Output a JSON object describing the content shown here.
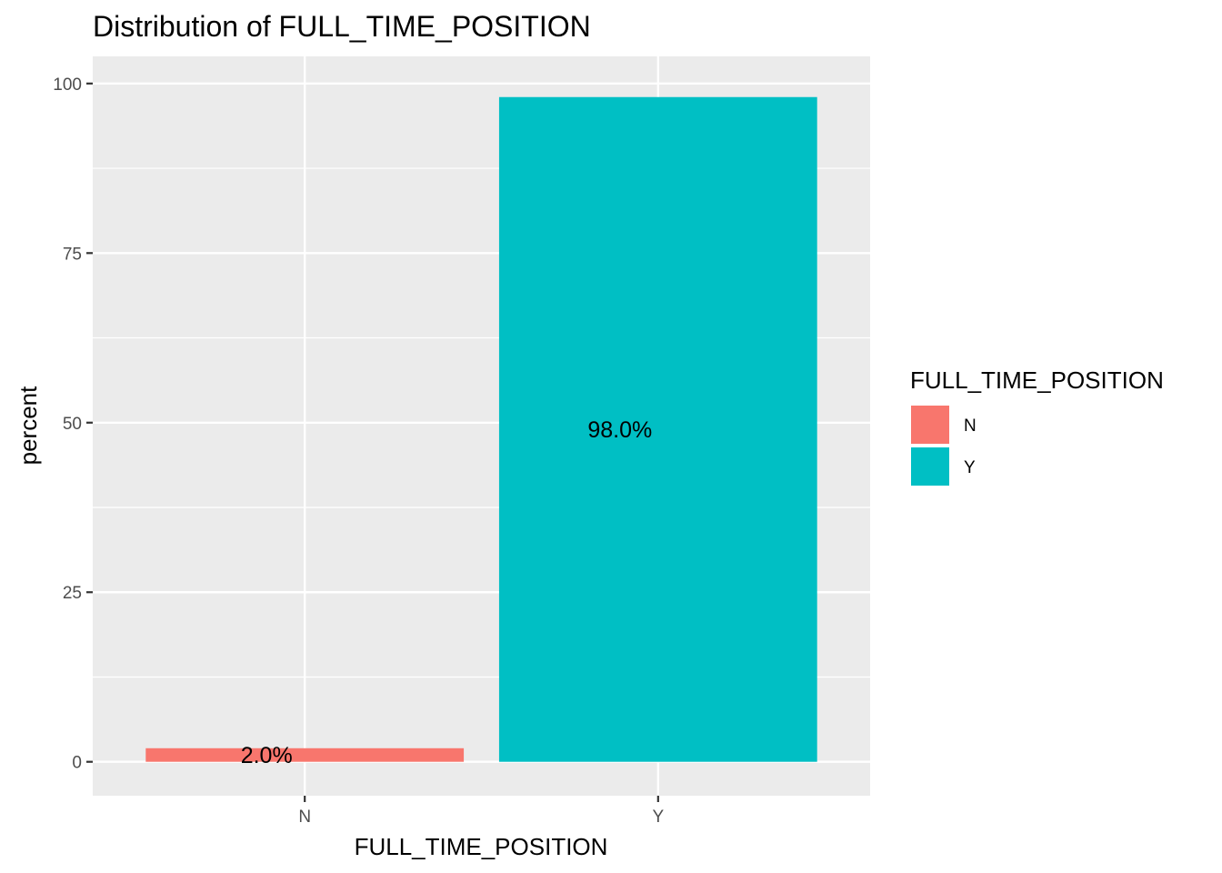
{
  "chart_data": {
    "type": "bar",
    "title": "Distribution of FULL_TIME_POSITION",
    "xlabel": "FULL_TIME_POSITION",
    "ylabel": "percent",
    "categories": [
      "N",
      "Y"
    ],
    "values": [
      2.0,
      98.0
    ],
    "data_labels": [
      "2.0%",
      "98.0%"
    ],
    "colors": [
      "#F8766D",
      "#00BFC4"
    ],
    "ylim": [
      -5,
      104
    ],
    "yticks": [
      0,
      25,
      50,
      75,
      100
    ],
    "grid": true,
    "legend": {
      "title": "FULL_TIME_POSITION",
      "placement": "right",
      "items": [
        {
          "label": "N",
          "color": "#F8766D"
        },
        {
          "label": "Y",
          "color": "#00BFC4"
        }
      ]
    }
  }
}
